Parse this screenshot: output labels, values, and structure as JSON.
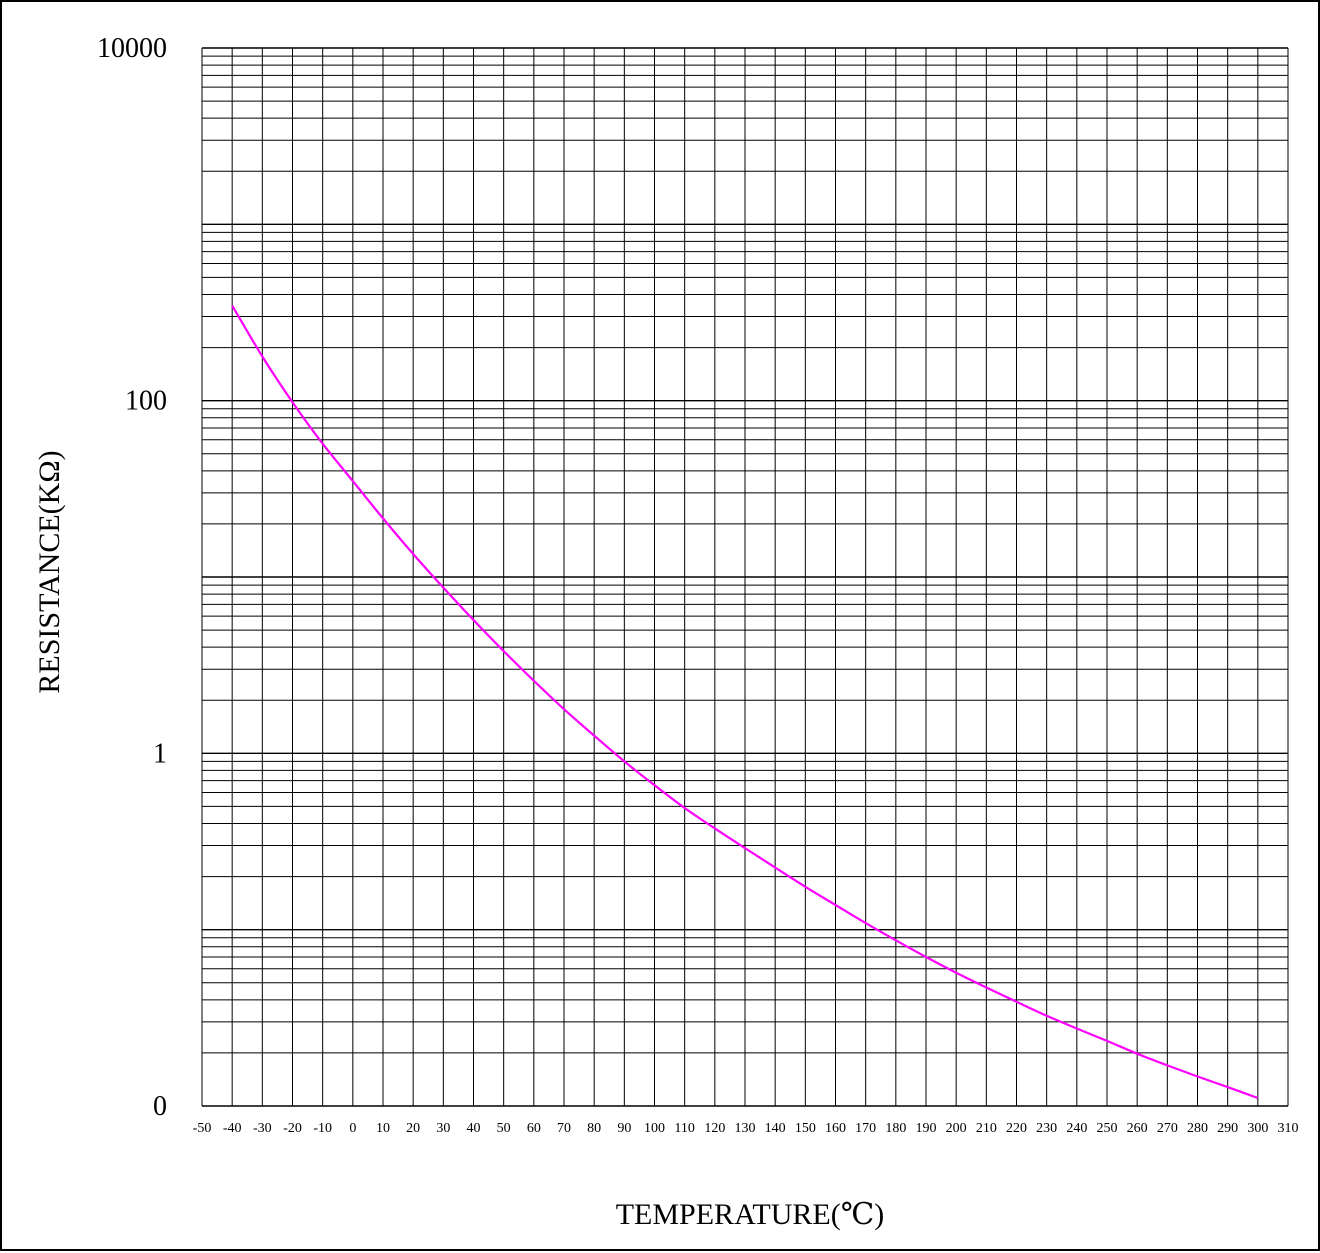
{
  "chart_data": {
    "type": "line",
    "title": "",
    "xlabel": "TEMPERATURE(℃)",
    "ylabel": "RESISTANCE(KΩ)",
    "x_scale": "linear",
    "y_scale": "log",
    "grid": true,
    "xlim": [
      -50,
      310
    ],
    "ylim": [
      0.01,
      10000
    ],
    "x_ticks": [
      "-50",
      "-40",
      "-30",
      "-20",
      "-10",
      "0",
      "10",
      "20",
      "30",
      "40",
      "50",
      "60",
      "70",
      "80",
      "90",
      "100",
      "110",
      "120",
      "130",
      "140",
      "150",
      "160",
      "170",
      "180",
      "190",
      "200",
      "210",
      "220",
      "230",
      "240",
      "250",
      "260",
      "270",
      "280",
      "290",
      "300",
      "310"
    ],
    "y_tick_labels": [
      {
        "value": 10000,
        "label": "10000"
      },
      {
        "value": 100,
        "label": "100"
      },
      {
        "value": 1,
        "label": "1"
      },
      {
        "value": 0.01,
        "label": "0"
      }
    ],
    "line_color": "#ff00ff",
    "series": [
      {
        "x": [
          -40,
          -30,
          -20,
          -10,
          0,
          10,
          20,
          30,
          40,
          50,
          60,
          70,
          80,
          90,
          100,
          110,
          120,
          130,
          140,
          150,
          160,
          170,
          180,
          190,
          200,
          210,
          220,
          230,
          240,
          250,
          260,
          270,
          280,
          290,
          300
        ],
        "y": [
          346,
          178,
          98,
          57,
          35,
          21.5,
          13.5,
          8.7,
          5.7,
          3.8,
          2.58,
          1.78,
          1.26,
          0.9,
          0.66,
          0.49,
          0.375,
          0.29,
          0.225,
          0.175,
          0.138,
          0.109,
          0.087,
          0.07,
          0.057,
          0.047,
          0.039,
          0.0325,
          0.0275,
          0.0234,
          0.0198,
          0.017,
          0.0147,
          0.0128,
          0.0111
        ]
      }
    ]
  }
}
